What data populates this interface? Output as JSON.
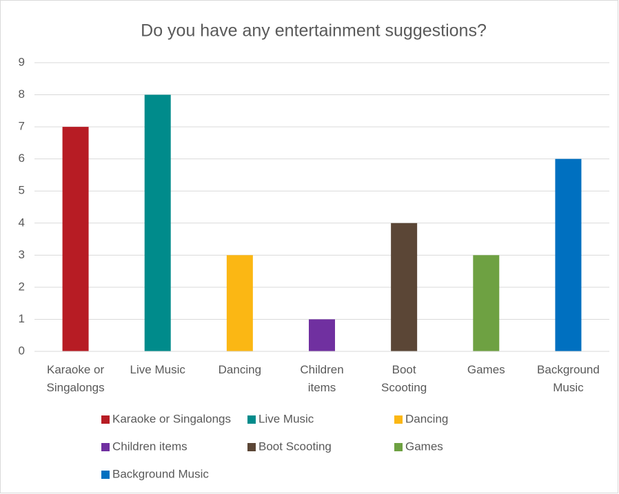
{
  "chart_data": {
    "type": "bar",
    "title": "Do you have any entertainment suggestions?",
    "categories": [
      "Karaoke or Singalongs",
      "Live Music",
      "Dancing",
      "Children items",
      "Boot Scooting",
      "Games",
      "Background Music"
    ],
    "values": [
      7,
      8,
      3,
      1,
      4,
      3,
      6
    ],
    "colors": [
      "#b71c24",
      "#008b8b",
      "#fbb714",
      "#7030a0",
      "#5b4636",
      "#6ea142",
      "#0070c0"
    ],
    "ylim": [
      0,
      9
    ],
    "yticks": [
      0,
      1,
      2,
      3,
      4,
      5,
      6,
      7,
      8,
      9
    ],
    "grid": true,
    "legend": "bottom"
  }
}
